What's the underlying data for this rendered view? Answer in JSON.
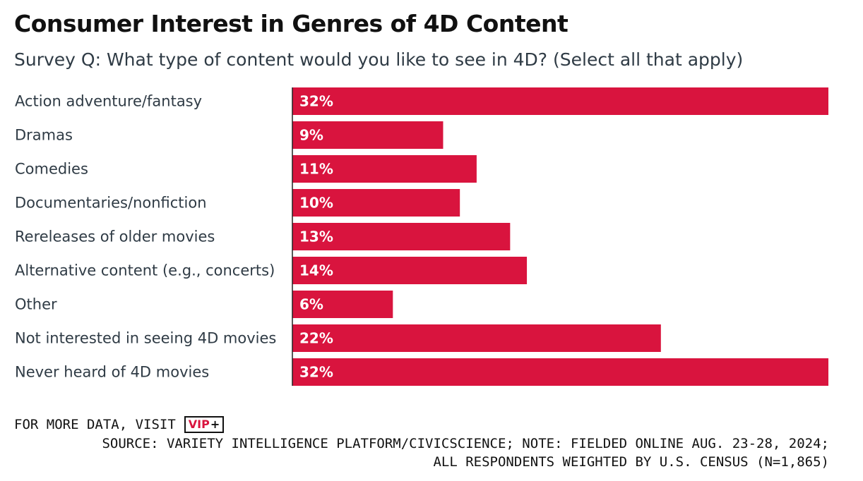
{
  "title": "Consumer Interest in Genres of 4D Content",
  "subtitle": "Survey Q: What type of content would you like to see in 4D? (Select all that apply)",
  "footer": {
    "visit_text": "FOR MORE DATA, VISIT",
    "vip_label": "VIP",
    "vip_plus": "+",
    "source_line1": "SOURCE: VARIETY INTELLIGENCE PLATFORM/CIVICSCIENCE; NOTE: FIELDED ONLINE AUG. 23-28, 2024;",
    "source_line2": "ALL RESPONDENTS WEIGHTED BY U.S. CENSUS (N=1,865)"
  },
  "colors": {
    "bar": "#d9143e",
    "bar_label": "#ffffff",
    "axis": "#222222",
    "category_text": "#2f3b45"
  },
  "chart_data": {
    "type": "bar",
    "orientation": "horizontal",
    "categories": [
      "Action adventure/fantasy",
      "Dramas",
      "Comedies",
      "Documentaries/nonfiction",
      "Rereleases of older movies",
      "Alternative content (e.g., concerts)",
      "Other",
      "Not interested in seeing 4D movies",
      "Never heard of 4D movies"
    ],
    "values": [
      32,
      9,
      11,
      10,
      13,
      14,
      6,
      22,
      32
    ],
    "value_labels": [
      "32%",
      "9%",
      "11%",
      "10%",
      "13%",
      "14%",
      "6%",
      "22%",
      "32%"
    ],
    "unit": "%",
    "xlim": [
      0,
      32
    ],
    "grid": false,
    "legend": "none"
  }
}
